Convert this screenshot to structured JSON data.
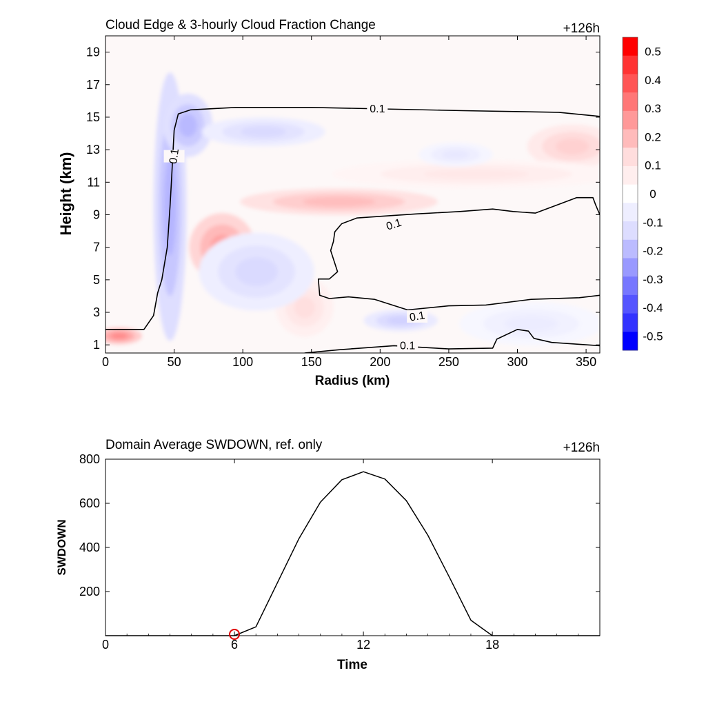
{
  "figure": {
    "top": {
      "title": "Cloud Edge & 3-hourly Cloud Fraction Change",
      "time_label": "+126h",
      "xlabel": "Radius (km)",
      "ylabel": "Height (km)"
    },
    "bottom": {
      "title": "Domain Average SWDOWN, ref. only",
      "time_label": "+126h",
      "xlabel": "Time",
      "ylabel": "SWDOWN"
    },
    "colorbar": {
      "labels": [
        "0.5",
        "0.4",
        "0.3",
        "0.2",
        "0.1",
        "0",
        "-0.1",
        "-0.2",
        "-0.3",
        "-0.4",
        "-0.5"
      ],
      "colors": [
        "#ff0000",
        "#ff3333",
        "#ff5555",
        "#ff7777",
        "#ff9999",
        "#ffbbbb",
        "#ffdddd",
        "#ffeeee",
        "#ffffff",
        "#eeeeff",
        "#ddddff",
        "#bbbbff",
        "#9999ff",
        "#7777ff",
        "#5555ff",
        "#3333ff",
        "#0000ff"
      ]
    }
  },
  "chart_data": [
    {
      "type": "heatmap",
      "title": "Cloud Edge & 3-hourly Cloud Fraction Change",
      "annotation": "+126h",
      "xlabel": "Radius (km)",
      "ylabel": "Height (km)",
      "xlim": [
        0,
        360
      ],
      "ylim": [
        0.5,
        20
      ],
      "x_ticks": [
        0,
        50,
        100,
        150,
        200,
        250,
        300,
        350
      ],
      "y_ticks": [
        1,
        3,
        5,
        7,
        9,
        11,
        13,
        15,
        17,
        19
      ],
      "colorbar_range": [
        -0.55,
        0.55
      ],
      "colorbar_ticks": [
        -0.5,
        -0.4,
        -0.3,
        -0.2,
        -0.1,
        0,
        0.1,
        0.2,
        0.3,
        0.4,
        0.5
      ],
      "contour_level": 0.1,
      "contour_label": "0.1",
      "contours": [
        [
          [
            0,
            1.95
          ],
          [
            28,
            1.95
          ],
          [
            35,
            2.8
          ],
          [
            38,
            4.2
          ],
          [
            41,
            5.0
          ],
          [
            45,
            7.0
          ],
          [
            47,
            9.5
          ],
          [
            48,
            11.0
          ],
          [
            49,
            12.6
          ],
          [
            50,
            14.2
          ],
          [
            53,
            15.2
          ],
          [
            62,
            15.45
          ],
          [
            95,
            15.6
          ],
          [
            150,
            15.6
          ],
          [
            260,
            15.4
          ],
          [
            330,
            15.3
          ],
          [
            360,
            15.05
          ]
        ],
        [
          [
            360,
            9.0
          ],
          [
            357,
            9.6
          ],
          [
            355,
            10.05
          ],
          [
            343,
            10.05
          ],
          [
            332,
            9.7
          ],
          [
            313,
            9.1
          ],
          [
            297,
            9.2
          ],
          [
            282,
            9.35
          ],
          [
            258,
            9.2
          ],
          [
            226,
            9.05
          ],
          [
            200,
            8.9
          ],
          [
            183,
            8.8
          ],
          [
            172,
            8.45
          ],
          [
            167,
            7.95
          ],
          [
            166,
            7.35
          ],
          [
            164,
            6.8
          ],
          [
            169,
            5.5
          ],
          [
            163,
            5.05
          ],
          [
            155,
            5.05
          ],
          [
            156,
            4.05
          ],
          [
            163,
            3.85
          ],
          [
            177,
            3.95
          ],
          [
            196,
            3.8
          ],
          [
            220,
            3.15
          ],
          [
            250,
            3.4
          ],
          [
            277,
            3.45
          ],
          [
            310,
            3.8
          ],
          [
            345,
            3.9
          ],
          [
            360,
            4.05
          ]
        ],
        [
          [
            145,
            0.5
          ],
          [
            170,
            0.7
          ],
          [
            210,
            0.95
          ],
          [
            250,
            0.75
          ],
          [
            282,
            0.8
          ],
          [
            285,
            1.35
          ],
          [
            300,
            1.95
          ],
          [
            308,
            1.85
          ],
          [
            312,
            1.4
          ],
          [
            325,
            1.15
          ],
          [
            360,
            0.95
          ]
        ]
      ],
      "contour_label_points": [
        [
          50,
          12.6
        ],
        [
          198,
          15.5
        ],
        [
          210,
          8.4
        ],
        [
          227,
          2.75
        ],
        [
          220,
          0.95
        ]
      ],
      "anomalies": [
        {
          "x": 85,
          "y": 7.0,
          "sx": 16,
          "sy": 1.4,
          "value": 0.2
        },
        {
          "x": 170,
          "y": 9.8,
          "sx": 48,
          "sy": 0.55,
          "value": 0.14
        },
        {
          "x": 340,
          "y": 13.2,
          "sx": 22,
          "sy": 0.9,
          "value": 0.1
        },
        {
          "x": 270,
          "y": 11.5,
          "sx": 70,
          "sy": 0.6,
          "value": 0.05
        },
        {
          "x": 10,
          "y": 1.55,
          "sx": 11,
          "sy": 0.35,
          "value": 0.25
        },
        {
          "x": 145,
          "y": 3.3,
          "sx": 14,
          "sy": 1.2,
          "value": 0.07
        },
        {
          "x": 47,
          "y": 9.5,
          "sx": 8,
          "sy": 5.5,
          "value": -0.16
        },
        {
          "x": 60,
          "y": 14.5,
          "sx": 12,
          "sy": 1.3,
          "value": -0.15
        },
        {
          "x": 115,
          "y": 14.1,
          "sx": 30,
          "sy": 0.6,
          "value": -0.08
        },
        {
          "x": 110,
          "y": 5.5,
          "sx": 28,
          "sy": 1.6,
          "value": -0.08
        },
        {
          "x": 215,
          "y": 2.5,
          "sx": 18,
          "sy": 0.45,
          "value": -0.1
        },
        {
          "x": 310,
          "y": 2.3,
          "sx": 35,
          "sy": 0.9,
          "value": -0.04
        },
        {
          "x": 255,
          "y": 12.7,
          "sx": 18,
          "sy": 0.5,
          "value": -0.05
        }
      ]
    },
    {
      "type": "line",
      "title": "Domain Average SWDOWN, ref. only",
      "annotation": "+126h",
      "xlabel": "Time",
      "ylabel": "SWDOWN",
      "xlim": [
        0,
        23
      ],
      "ylim": [
        0,
        800
      ],
      "x_ticks": [
        0,
        6,
        12,
        18
      ],
      "y_ticks": [
        200,
        400,
        600,
        800
      ],
      "series": [
        {
          "x": [
            0,
            1,
            2,
            3,
            4,
            5,
            6,
            7,
            8,
            9,
            10,
            11,
            12,
            13,
            14,
            15,
            16,
            17,
            18,
            19,
            20,
            21,
            22,
            23
          ],
          "y": [
            0,
            0,
            0,
            0,
            0,
            0,
            0,
            40,
            240,
            440,
            605,
            707,
            743,
            710,
            612,
            455,
            265,
            70,
            0,
            0,
            0,
            0,
            0,
            0
          ]
        }
      ],
      "marker": {
        "x": 6,
        "y": 0
      }
    }
  ]
}
